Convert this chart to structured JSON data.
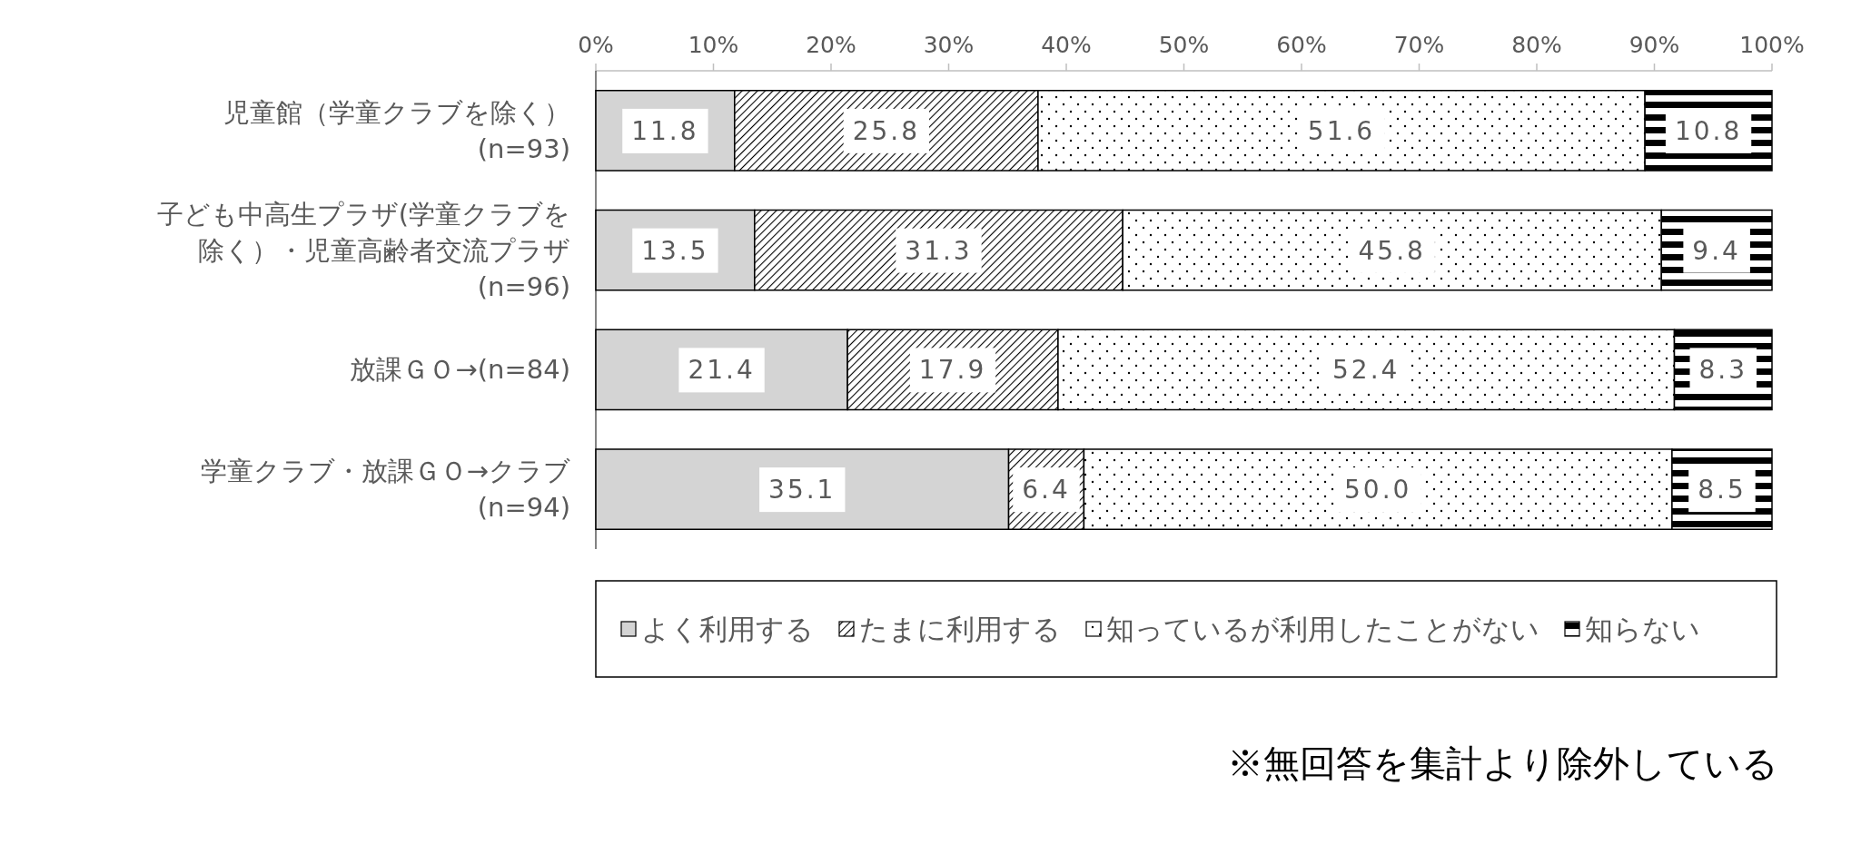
{
  "chart_data": {
    "type": "bar",
    "orientation": "horizontal",
    "stacked": true,
    "categories": [
      "児童館（学童クラブを除く）\n(n=93)",
      "子ども中高生プラザ(学童クラブを除く）・児童高齢者交流プラザ\n(n=96)",
      "放課ＧＯ→(n=84)",
      "学童クラブ・放課ＧＯ→クラブ\n(n=94)"
    ],
    "series": [
      {
        "name": "よく利用する",
        "color": "#d4d4d4",
        "values": [
          11.8,
          13.5,
          21.4,
          35.1
        ],
        "value_labels": [
          "11.8",
          "13.5",
          "21.4",
          "35.1"
        ]
      },
      {
        "name": "たまに利用する",
        "color": "#000000",
        "values": [
          25.8,
          31.3,
          17.9,
          6.4
        ],
        "value_labels": [
          "25.8",
          "31.3",
          "17.9",
          "6.4"
        ]
      },
      {
        "name": "知っているが利用したことがない",
        "color": "#000000",
        "values": [
          51.6,
          45.8,
          52.4,
          50.0
        ],
        "value_labels": [
          "51.6",
          "45.8",
          "52.4",
          "50.0"
        ]
      },
      {
        "name": "知らない",
        "color": "#000000",
        "values": [
          10.8,
          9.4,
          8.3,
          8.5
        ],
        "value_labels": [
          "10.8",
          "9.4",
          "8.3",
          "8.5"
        ]
      }
    ],
    "xlim": [
      0,
      100
    ],
    "xticks": [
      {
        "value": 0,
        "label": "0%"
      },
      {
        "value": 10,
        "label": "10%"
      },
      {
        "value": 20,
        "label": "20%"
      },
      {
        "value": 30,
        "label": "30%"
      },
      {
        "value": 40,
        "label": "40%"
      },
      {
        "value": 50,
        "label": "50%"
      },
      {
        "value": 60,
        "label": "60%"
      },
      {
        "value": 70,
        "label": "70%"
      },
      {
        "value": 80,
        "label": "80%"
      },
      {
        "value": 90,
        "label": "90%"
      },
      {
        "value": 100,
        "label": "100%"
      }
    ],
    "grid": false,
    "legend": "bottom",
    "annotations": [
      "※無回答を集計より除外している"
    ]
  }
}
